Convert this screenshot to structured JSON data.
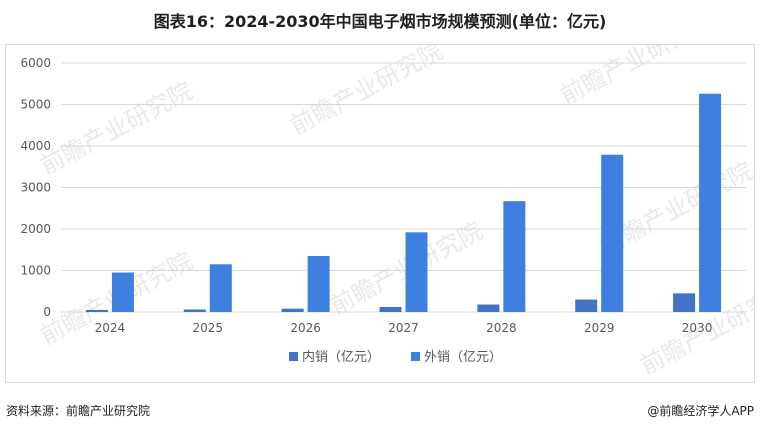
{
  "title": "图表16：2024-2030年中国电子烟市场规模预测(单位：亿元)",
  "footer": {
    "source": "资料来源：前瞻产业研究院",
    "credit": "@前瞻经济学人APP"
  },
  "watermark": "前瞻产业研究院",
  "colors": {
    "domestic": "#4472c4",
    "export": "#3f7fe0",
    "grid": "#d9d9d9",
    "axis_text": "#595959"
  },
  "chart_data": {
    "type": "bar",
    "title": "",
    "xlabel": "",
    "ylabel": "",
    "categories": [
      "2024",
      "2025",
      "2026",
      "2027",
      "2028",
      "2029",
      "2030"
    ],
    "ylim": [
      0,
      6000
    ],
    "yticks": [
      "0",
      "1000",
      "2000",
      "3000",
      "4000",
      "5000",
      "6000"
    ],
    "grid": true,
    "legend_position": "bottom",
    "series": [
      {
        "name": "内销（亿元）",
        "values": [
          50,
          60,
          80,
          120,
          180,
          300,
          450
        ]
      },
      {
        "name": "外销（亿元）",
        "values": [
          950,
          1150,
          1350,
          1920,
          2670,
          3790,
          5260
        ]
      }
    ]
  }
}
